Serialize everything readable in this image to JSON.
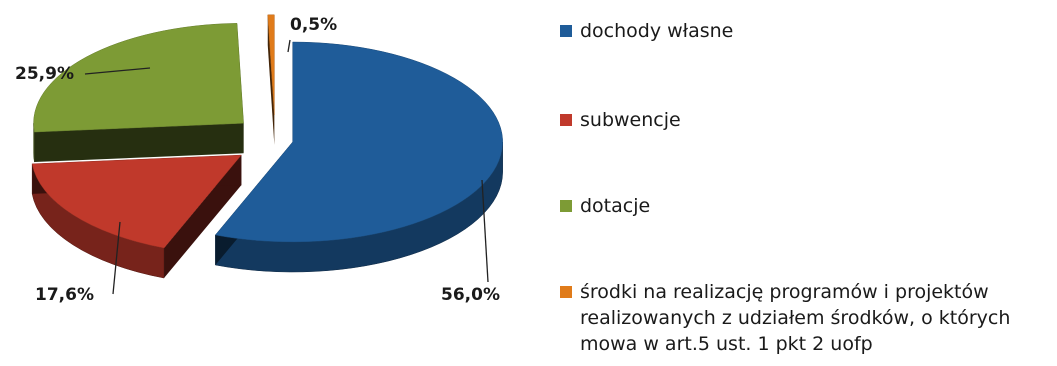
{
  "chart_data": {
    "type": "pie",
    "style": "3d-exploded",
    "slices": [
      {
        "name": "dochody własne",
        "value": 56.0,
        "label": "56,0%",
        "color": "#1f5c99"
      },
      {
        "name": "subwencje",
        "value": 17.6,
        "label": "17,6%",
        "color": "#c0392b"
      },
      {
        "name": "dotacje",
        "value": 25.9,
        "label": "25,9%",
        "color": "#7d9b35"
      },
      {
        "name": "środki na realizację programów i projektów realizowanych z udziałem środków, o których mowa w art.5 ust. 1 pkt 2 uofp",
        "value": 0.5,
        "label": "0,5%",
        "color": "#e07b1a"
      }
    ],
    "legend_position": "right"
  }
}
